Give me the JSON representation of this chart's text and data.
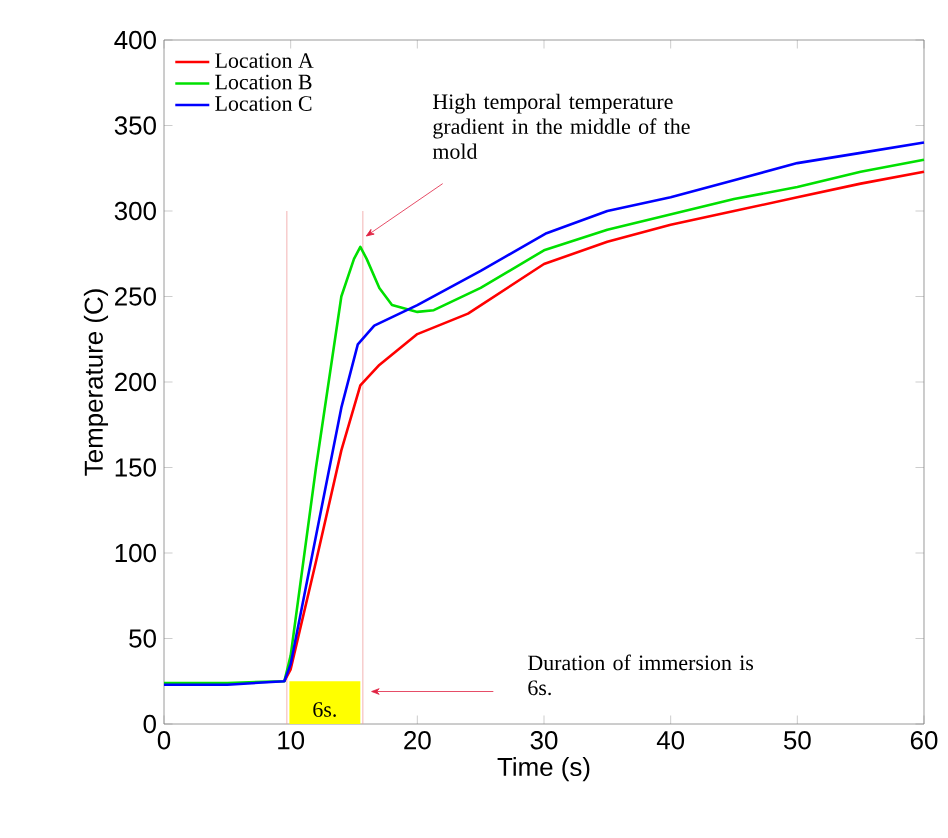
{
  "chart_data": {
    "type": "line",
    "xlabel": "Time (s)",
    "ylabel": "Temperature (C)",
    "xlim": [
      0,
      60
    ],
    "ylim": [
      0,
      400
    ],
    "xticks": [
      0,
      10,
      20,
      30,
      40,
      50,
      60
    ],
    "yticks": [
      0,
      50,
      100,
      150,
      200,
      250,
      300,
      350,
      400
    ],
    "legend": "top left",
    "grid": false,
    "line_style": "solid",
    "marker": "none",
    "series": [
      {
        "name": "Location A",
        "color": "#ff0000",
        "x": [
          9.5,
          10,
          12,
          14,
          15.5,
          17,
          20,
          24,
          30,
          35,
          40,
          45,
          50,
          55,
          60
        ],
        "values": [
          25,
          32,
          95,
          160,
          198,
          210,
          228,
          240,
          269,
          282,
          292,
          300,
          308,
          316,
          323
        ]
      },
      {
        "name": "Location B",
        "color": "#00e000",
        "x": [
          0,
          5,
          9.5,
          10,
          12,
          14,
          15,
          15.5,
          16,
          17,
          18,
          20,
          21.3,
          25,
          30,
          35,
          40,
          45,
          50,
          55,
          60
        ],
        "values": [
          24,
          24,
          25,
          40,
          150,
          250,
          272,
          279,
          272,
          255,
          245,
          241,
          242,
          255,
          277,
          289,
          298,
          307,
          314,
          323,
          330
        ]
      },
      {
        "name": "Location C",
        "color": "#0000ff",
        "x": [
          0,
          5,
          9.5,
          10,
          12,
          14,
          15.3,
          16.6,
          20,
          25,
          30.2,
          35,
          40,
          45,
          50,
          55,
          60
        ],
        "values": [
          23,
          23,
          25,
          35,
          110,
          185,
          222,
          233,
          245,
          265,
          287,
          300,
          308,
          318,
          328,
          334,
          340
        ]
      }
    ],
    "ref_lines": [
      {
        "axis": "x",
        "value": 9.7,
        "color": "#f0a0a0"
      },
      {
        "axis": "x",
        "value": 15.7,
        "color": "#f0a0a0"
      }
    ],
    "bands": [
      {
        "axis": "x",
        "from": 9.9,
        "to": 15.5,
        "label": "6s.",
        "color": "#ffff00"
      }
    ],
    "annotations": [
      {
        "text": "High temporal temperature gradient in the middle of the mold",
        "x": 15.5,
        "y": 279
      },
      "Duration of immersion is 6s."
    ]
  }
}
